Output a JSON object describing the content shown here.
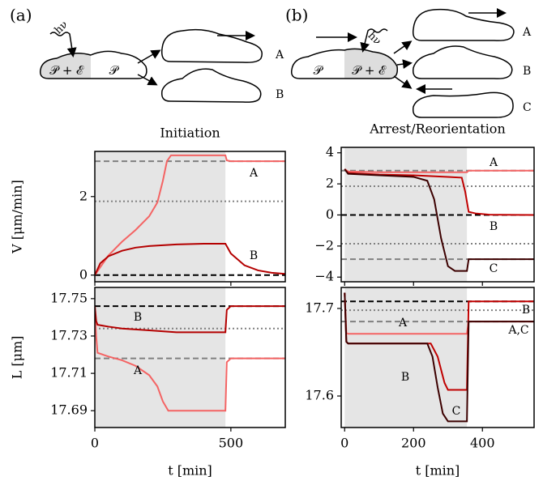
{
  "schematic": {
    "a": {
      "label": "(a)",
      "photon": "hν",
      "front": "𝒫 + ℰ",
      "back": "𝒫",
      "outcomes": [
        "A",
        "B"
      ]
    },
    "b": {
      "label": "(b)",
      "photon": "hν",
      "back": "𝒫",
      "front": "𝒫 + ℰ",
      "outcomes": [
        "A",
        "B",
        "C"
      ]
    }
  },
  "chart_data": [
    {
      "type": "line",
      "title": "Initiation",
      "ylabel": "V [μm/min]",
      "xlim": [
        0,
        700
      ],
      "ylim": [
        -0.17,
        3.15
      ],
      "xticks": [
        0,
        500
      ],
      "yticks": [
        0,
        2
      ],
      "shade": [
        0,
        480
      ],
      "hlines": [
        {
          "value": 2.9,
          "style": "dashed",
          "color": "#808080"
        },
        {
          "value": 1.88,
          "style": "dotted",
          "color": "#808080"
        },
        {
          "value": 0,
          "style": "dashed",
          "color": "#000000"
        }
      ],
      "series": [
        {
          "name": "A",
          "color": "#f46464",
          "x": [
            0,
            20,
            50,
            100,
            150,
            200,
            230,
            250,
            265,
            280,
            300,
            480,
            485,
            500,
            550,
            700
          ],
          "values": [
            0,
            0.2,
            0.5,
            0.85,
            1.15,
            1.5,
            1.85,
            2.4,
            2.9,
            3.05,
            3.05,
            3.05,
            2.92,
            2.9,
            2.9,
            2.9
          ]
        },
        {
          "name": "B",
          "color": "#b40000",
          "x": [
            0,
            20,
            50,
            100,
            150,
            200,
            300,
            400,
            480,
            500,
            550,
            600,
            650,
            700
          ],
          "values": [
            0,
            0.3,
            0.48,
            0.62,
            0.7,
            0.74,
            0.78,
            0.8,
            0.8,
            0.55,
            0.25,
            0.12,
            0.06,
            0.03
          ]
        }
      ]
    },
    {
      "type": "line",
      "title": "Arrest/Reorientation",
      "xlim": [
        -10,
        550
      ],
      "ylim": [
        -4.3,
        4.35
      ],
      "xticks": [
        0,
        200,
        400
      ],
      "yticks": [
        {
          "value": -4,
          "label": "−4"
        },
        {
          "value": -2,
          "label": "−2"
        },
        0,
        2,
        4
      ],
      "shade": [
        0,
        355
      ],
      "hlines": [
        {
          "value": 2.85,
          "style": "dashed",
          "color": "#808080"
        },
        {
          "value": 1.85,
          "style": "dotted",
          "color": "#808080"
        },
        {
          "value": 0,
          "style": "dashed",
          "color": "#000000"
        },
        {
          "value": -1.85,
          "style": "dotted",
          "color": "#808080"
        },
        {
          "value": -2.85,
          "style": "dashed",
          "color": "#808080"
        }
      ],
      "series": [
        {
          "name": "A",
          "color": "#f46464",
          "x": [
            0,
            10,
            100,
            200,
            355,
            360,
            550
          ],
          "values": [
            2.95,
            2.8,
            2.75,
            2.75,
            2.75,
            2.85,
            2.85
          ]
        },
        {
          "name": "B",
          "color": "#c00000",
          "x": [
            0,
            10,
            100,
            200,
            300,
            340,
            350,
            360,
            380,
            420,
            550
          ],
          "values": [
            2.95,
            2.7,
            2.6,
            2.55,
            2.45,
            2.4,
            1.5,
            0.2,
            0.1,
            0.02,
            0
          ]
        },
        {
          "name": "C",
          "color": "#3c0000",
          "x": [
            0,
            10,
            100,
            200,
            240,
            260,
            280,
            300,
            320,
            355,
            360,
            550
          ],
          "values": [
            2.95,
            2.65,
            2.55,
            2.45,
            2.2,
            1.0,
            -1.5,
            -3.3,
            -3.6,
            -3.6,
            -2.85,
            -2.85
          ]
        }
      ]
    },
    {
      "type": "line",
      "ylabel": "L [μm]",
      "xlabel": "t [min]",
      "xlim": [
        0,
        700
      ],
      "ylim": [
        17.681,
        17.756
      ],
      "xticks": [
        0,
        500
      ],
      "yticks": [
        17.69,
        17.71,
        17.73,
        17.75
      ],
      "shade": [
        0,
        480
      ],
      "hlines": [
        {
          "value": 17.746,
          "style": "dashed",
          "color": "#000000"
        },
        {
          "value": 17.734,
          "style": "dotted",
          "color": "#808080"
        },
        {
          "value": 17.718,
          "style": "dashed",
          "color": "#808080"
        }
      ],
      "series": [
        {
          "name": "A",
          "color": "#f46464",
          "x": [
            0,
            5,
            10,
            50,
            100,
            150,
            200,
            230,
            250,
            270,
            300,
            480,
            485,
            500,
            700
          ],
          "values": [
            17.746,
            17.73,
            17.721,
            17.719,
            17.717,
            17.714,
            17.709,
            17.703,
            17.695,
            17.69,
            17.69,
            17.69,
            17.716,
            17.718,
            17.718
          ]
        },
        {
          "name": "B",
          "color": "#b40000",
          "x": [
            0,
            5,
            10,
            50,
            100,
            200,
            300,
            400,
            480,
            485,
            500,
            700
          ],
          "values": [
            17.746,
            17.738,
            17.736,
            17.735,
            17.734,
            17.733,
            17.732,
            17.732,
            17.732,
            17.744,
            17.746,
            17.746
          ]
        }
      ]
    },
    {
      "type": "line",
      "xlabel": "t [min]",
      "xlim": [
        -10,
        550
      ],
      "ylim": [
        17.564,
        17.724
      ],
      "xticks": [
        0,
        200,
        400
      ],
      "yticks": [
        17.6,
        17.7
      ],
      "shade": [
        0,
        355
      ],
      "hlines": [
        {
          "value": 17.708,
          "style": "dashed",
          "color": "#000000"
        },
        {
          "value": 17.698,
          "style": "dotted",
          "color": "#808080"
        },
        {
          "value": 17.685,
          "style": "dashed",
          "color": "#808080"
        }
      ],
      "annotations": [
        "A,C"
      ],
      "series": [
        {
          "name": "A",
          "color": "#f46464",
          "x": [
            0,
            5,
            10,
            355,
            360,
            550
          ],
          "values": [
            17.718,
            17.672,
            17.671,
            17.671,
            17.685,
            17.685
          ]
        },
        {
          "name": "B",
          "color": "#c00000",
          "x": [
            0,
            5,
            10,
            250,
            270,
            290,
            300,
            355,
            360,
            550
          ],
          "values": [
            17.718,
            17.662,
            17.66,
            17.66,
            17.645,
            17.615,
            17.607,
            17.607,
            17.708,
            17.708
          ]
        },
        {
          "name": "C",
          "color": "#3c0000",
          "x": [
            0,
            5,
            10,
            240,
            255,
            270,
            285,
            300,
            355,
            360,
            550
          ],
          "values": [
            17.718,
            17.662,
            17.66,
            17.66,
            17.645,
            17.61,
            17.58,
            17.571,
            17.571,
            17.685,
            17.685
          ]
        }
      ]
    }
  ]
}
